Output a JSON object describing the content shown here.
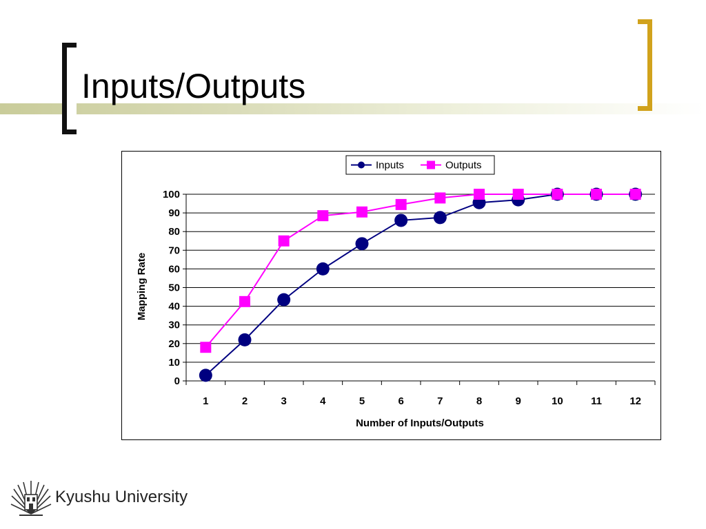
{
  "slide": {
    "title": "Inputs/Outputs",
    "footer_text": "Kyushu University",
    "logo_icon": "kyushu-university-emblem-icon"
  },
  "colors": {
    "accent_band": "#c9cc9a",
    "bracket_left": "#111111",
    "bracket_right": "#d1a21c",
    "inputs_series": "#000080",
    "outputs_series": "#ff00ff"
  },
  "chart_data": {
    "type": "line",
    "title": "",
    "xlabel": "Number of Inputs/Outputs",
    "ylabel": "Mapping Rate",
    "categories": [
      "1",
      "2",
      "3",
      "4",
      "5",
      "6",
      "7",
      "8",
      "9",
      "10",
      "11",
      "12"
    ],
    "ylim": [
      0,
      100
    ],
    "yticks": [
      "0",
      "10",
      "20",
      "30",
      "40",
      "50",
      "60",
      "70",
      "80",
      "90",
      "100"
    ],
    "grid": true,
    "legend_position": "top",
    "series": [
      {
        "name": "Inputs",
        "marker": "circle",
        "color": "#000080",
        "values": [
          3,
          22,
          43.5,
          60,
          73.5,
          86,
          87.5,
          95.5,
          97,
          100,
          100,
          100
        ]
      },
      {
        "name": "Outputs",
        "marker": "square",
        "color": "#ff00ff",
        "values": [
          18,
          42.5,
          75,
          88.5,
          90.5,
          94.5,
          98,
          100,
          100,
          100,
          100,
          100
        ]
      }
    ]
  }
}
